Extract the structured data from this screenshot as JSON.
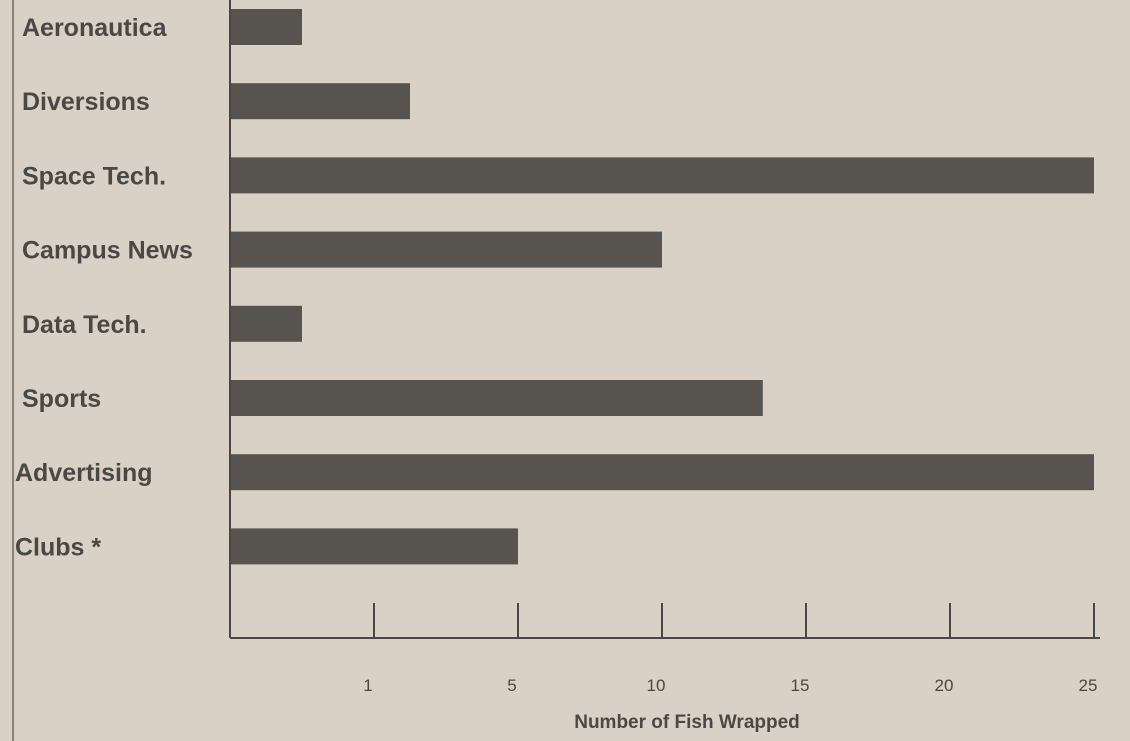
{
  "chart_data": {
    "type": "bar",
    "orientation": "horizontal",
    "categories": [
      "Aeronautica",
      "Diversions",
      "Space Tech.",
      "Campus News",
      "Data Tech.",
      "Sports",
      "Advertising",
      "Clubs *"
    ],
    "values": [
      0.5,
      2,
      25,
      10,
      0.5,
      13.5,
      25,
      5
    ],
    "x_ticks": [
      {
        "label": "1",
        "value": 1
      },
      {
        "label": "5",
        "value": 5
      },
      {
        "label": "10",
        "value": 10
      },
      {
        "label": "15",
        "value": 15
      },
      {
        "label": "20",
        "value": 20
      },
      {
        "label": "25",
        "value": 25
      }
    ],
    "xlabel": "Number of Fish Wrapped",
    "ylabel": "",
    "title": "",
    "grid": false,
    "legend": "none",
    "bar_color": "#57534e",
    "axis_color": "#4a4844"
  }
}
